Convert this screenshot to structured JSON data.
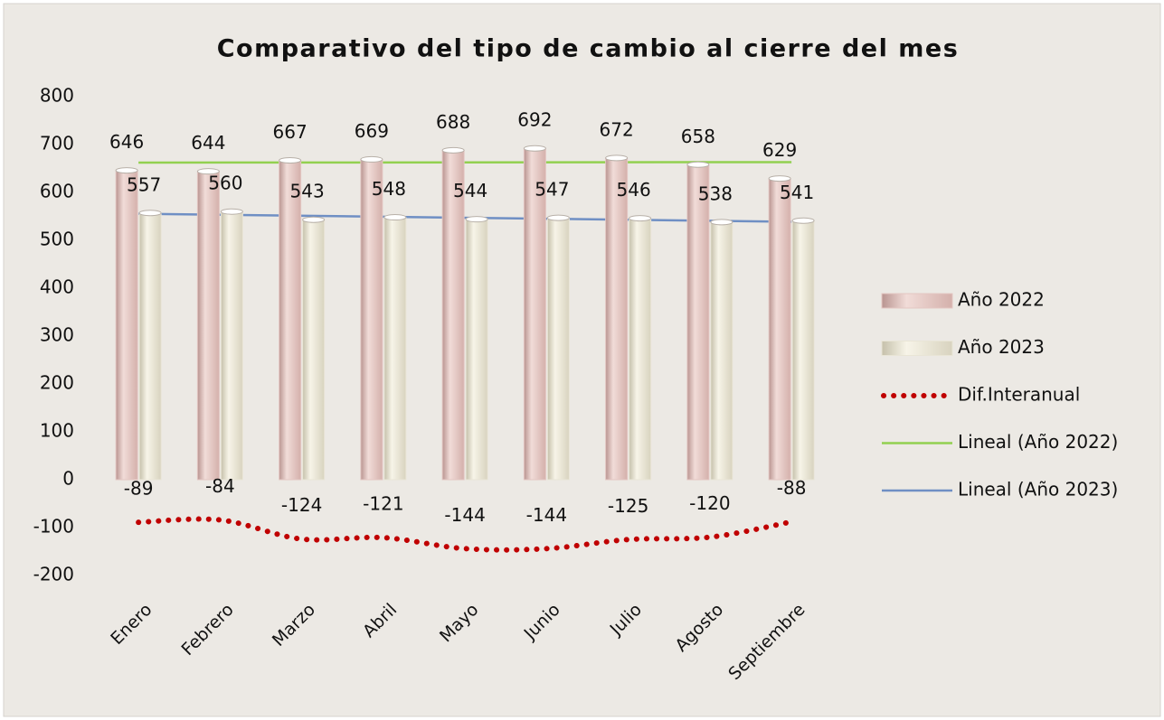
{
  "chart_data": {
    "type": "bar",
    "title": "Comparativo del tipo de cambio al cierre del mes",
    "categories": [
      "Enero",
      "Febrero",
      "Marzo",
      "Abril",
      "Mayo",
      "Junio",
      "Julio",
      "Agosto",
      "Septiembre"
    ],
    "series": [
      {
        "name": "Año 2022",
        "type": "bar",
        "color": "#e3c6c2",
        "values": [
          646,
          644,
          667,
          669,
          688,
          692,
          672,
          658,
          629
        ]
      },
      {
        "name": "Año 2023",
        "type": "bar",
        "color": "#e9e5d6",
        "values": [
          557,
          560,
          543,
          548,
          544,
          547,
          546,
          538,
          541
        ]
      },
      {
        "name": "Dif.Interanual",
        "type": "line",
        "dash": "dotted",
        "color": "#c00000",
        "values": [
          -89,
          -84,
          -124,
          -121,
          -144,
          -144,
          -125,
          -120,
          -88
        ]
      }
    ],
    "trendlines": [
      {
        "name": "Lineal (Año 2022)",
        "color": "#92d050"
      },
      {
        "name": "Lineal (Año 2023)",
        "color": "#6f8fc4"
      }
    ],
    "ylim": [
      -200,
      800
    ],
    "yticks": [
      -200,
      -100,
      0,
      100,
      200,
      300,
      400,
      500,
      600,
      700,
      800
    ],
    "grid": false,
    "legend": "right"
  }
}
